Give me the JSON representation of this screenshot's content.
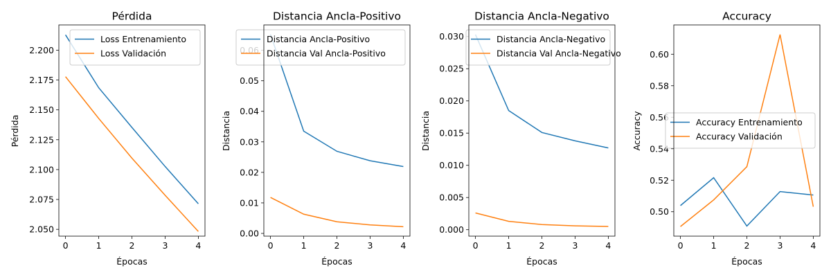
{
  "chart_data": [
    {
      "type": "line",
      "title": "Pérdida",
      "xlabel": "Épocas",
      "ylabel": "Pérdida",
      "x": [
        0,
        1,
        2,
        3,
        4
      ],
      "xticks": [
        "0",
        "1",
        "2",
        "3",
        "4"
      ],
      "xlim": [
        -0.2,
        4.2
      ],
      "ylim": [
        2.0443,
        2.2211
      ],
      "yticks": [
        2.05,
        2.075,
        2.1,
        2.125,
        2.15,
        2.175,
        2.2
      ],
      "ytick_labels": [
        "2.050",
        "2.075",
        "2.100",
        "2.125",
        "2.150",
        "2.175",
        "2.200"
      ],
      "legend": "upper right",
      "grid": false,
      "series": [
        {
          "name": "Loss Entrenamiento",
          "color": "#1f77b4",
          "values": [
            2.2128,
            2.1685,
            2.1353,
            2.1026,
            2.0714
          ]
        },
        {
          "name": "Loss Validación",
          "color": "#ff7f0e",
          "values": [
            2.1778,
            2.1428,
            2.1096,
            2.0785,
            2.0482
          ]
        }
      ]
    },
    {
      "type": "line",
      "title": "Distancia Ancla-Positivo",
      "xlabel": "Épocas",
      "ylabel": "Distancia",
      "x": [
        0,
        1,
        2,
        3,
        4
      ],
      "xticks": [
        "0",
        "1",
        "2",
        "3",
        "4"
      ],
      "xlim": [
        -0.2,
        4.2
      ],
      "ylim": [
        -0.0009,
        0.0683
      ],
      "yticks": [
        0.0,
        0.01,
        0.02,
        0.03,
        0.04,
        0.05,
        0.06
      ],
      "ytick_labels": [
        "0.00",
        "0.01",
        "0.02",
        "0.03",
        "0.04",
        "0.05",
        "0.06"
      ],
      "legend": "upper right",
      "grid": false,
      "series": [
        {
          "name": "Distancia Ancla-Positivo",
          "color": "#1f77b4",
          "values": [
            0.0652,
            0.0335,
            0.0269,
            0.0238,
            0.0219
          ]
        },
        {
          "name": "Distancia Val Ancla-Positivo",
          "color": "#ff7f0e",
          "values": [
            0.0118,
            0.0063,
            0.0038,
            0.0028,
            0.0022
          ]
        }
      ]
    },
    {
      "type": "line",
      "title": "Distancia Ancla-Negativo",
      "xlabel": "Épocas",
      "ylabel": "Distancia",
      "x": [
        0,
        1,
        2,
        3,
        4
      ],
      "xticks": [
        "0",
        "1",
        "2",
        "3",
        "4"
      ],
      "xlim": [
        -0.2,
        4.2
      ],
      "ylim": [
        -0.001,
        0.0318
      ],
      "yticks": [
        0.0,
        0.005,
        0.01,
        0.015,
        0.02,
        0.025,
        0.03
      ],
      "ytick_labels": [
        "0.000",
        "0.005",
        "0.010",
        "0.015",
        "0.020",
        "0.025",
        "0.030"
      ],
      "legend": "upper right",
      "grid": false,
      "series": [
        {
          "name": "Distancia Ancla-Negativo",
          "color": "#1f77b4",
          "values": [
            0.0303,
            0.0185,
            0.0151,
            0.0138,
            0.0127
          ]
        },
        {
          "name": "Distancia Val Ancla-Negativo",
          "color": "#ff7f0e",
          "values": [
            0.0026,
            0.0013,
            0.0008,
            0.0006,
            0.0005
          ]
        }
      ]
    },
    {
      "type": "line",
      "title": "Accuracy",
      "xlabel": "Épocas",
      "ylabel": "Accuracy",
      "x": [
        0,
        1,
        2,
        3,
        4
      ],
      "xticks": [
        "0",
        "1",
        "2",
        "3",
        "4"
      ],
      "xlim": [
        -0.2,
        4.2
      ],
      "ylim": [
        0.4845,
        0.6186
      ],
      "yticks": [
        0.5,
        0.52,
        0.54,
        0.56,
        0.58,
        0.6
      ],
      "ytick_labels": [
        "0.50",
        "0.52",
        "0.54",
        "0.56",
        "0.58",
        "0.60"
      ],
      "legend": "center right",
      "grid": false,
      "series": [
        {
          "name": "Accuracy Entrenamiento",
          "color": "#1f77b4",
          "values": [
            0.5039,
            0.5216,
            0.4909,
            0.5128,
            0.5106
          ]
        },
        {
          "name": "Accuracy Validación",
          "color": "#ff7f0e",
          "values": [
            0.4906,
            0.5075,
            0.5286,
            0.6125,
            0.5032
          ]
        }
      ]
    }
  ]
}
